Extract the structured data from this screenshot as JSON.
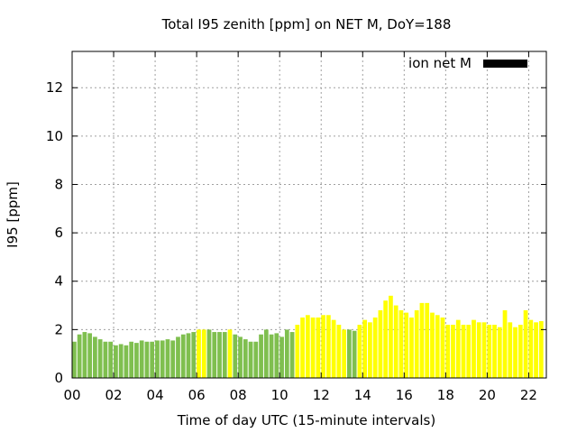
{
  "chart_data": {
    "type": "bar",
    "title": "Total I95 zenith [ppm] on NET M, DoY=188",
    "xlabel": "Time of day UTC (15-minute intervals)",
    "ylabel": "I95 [ppm]",
    "ylim": [
      0,
      13.5
    ],
    "xlim": [
      0,
      22.85
    ],
    "yticks": [
      0,
      2,
      4,
      6,
      8,
      10,
      12
    ],
    "xticks": [
      0,
      2,
      4,
      6,
      8,
      10,
      12,
      14,
      16,
      18,
      20,
      22
    ],
    "xtick_labels": [
      "00",
      "02",
      "04",
      "06",
      "08",
      "10",
      "12",
      "14",
      "16",
      "18",
      "20",
      "22"
    ],
    "grid": true,
    "legend_position": "top-right",
    "legend_entry": "ion net M",
    "legend_color": "#000000",
    "bar_colors": {
      "green": "#7fbf4f",
      "yellow": "#ffff00"
    },
    "bin_hours": 0.25,
    "values": [
      1.5,
      1.8,
      1.9,
      1.85,
      1.7,
      1.6,
      1.5,
      1.5,
      1.35,
      1.4,
      1.35,
      1.5,
      1.45,
      1.55,
      1.5,
      1.5,
      1.55,
      1.55,
      1.6,
      1.55,
      1.7,
      1.8,
      1.85,
      1.9,
      2.0,
      2.0,
      2.0,
      1.9,
      1.9,
      1.9,
      2.0,
      1.8,
      1.7,
      1.6,
      1.5,
      1.5,
      1.8,
      2.0,
      1.8,
      1.85,
      1.7,
      2.0,
      1.9,
      2.2,
      2.5,
      2.6,
      2.5,
      2.5,
      2.6,
      2.6,
      2.4,
      2.2,
      2.0,
      2.0,
      1.95,
      2.2,
      2.4,
      2.3,
      2.5,
      2.8,
      3.2,
      3.4,
      3.0,
      2.8,
      2.7,
      2.5,
      2.8,
      3.1,
      3.1,
      2.7,
      2.6,
      2.5,
      2.2,
      2.2,
      2.4,
      2.2,
      2.2,
      2.4,
      2.3,
      2.3,
      2.2,
      2.2,
      2.1,
      2.8,
      2.3,
      2.1,
      2.2,
      2.8,
      2.4,
      2.3,
      2.35
    ],
    "colors": [
      "green",
      "green",
      "green",
      "green",
      "green",
      "green",
      "green",
      "green",
      "green",
      "green",
      "green",
      "green",
      "green",
      "green",
      "green",
      "green",
      "green",
      "green",
      "green",
      "green",
      "green",
      "green",
      "green",
      "green",
      "yellow",
      "yellow",
      "green",
      "green",
      "green",
      "green",
      "yellow",
      "green",
      "green",
      "green",
      "green",
      "green",
      "green",
      "green",
      "green",
      "green",
      "green",
      "green",
      "green",
      "yellow",
      "yellow",
      "yellow",
      "yellow",
      "yellow",
      "yellow",
      "yellow",
      "yellow",
      "yellow",
      "yellow",
      "green",
      "green",
      "yellow",
      "yellow",
      "yellow",
      "yellow",
      "yellow",
      "yellow",
      "yellow",
      "yellow",
      "yellow",
      "yellow",
      "yellow",
      "yellow",
      "yellow",
      "yellow",
      "yellow",
      "yellow",
      "yellow",
      "yellow",
      "yellow",
      "yellow",
      "yellow",
      "yellow",
      "yellow",
      "yellow",
      "yellow",
      "yellow",
      "yellow",
      "yellow",
      "yellow",
      "yellow",
      "yellow",
      "yellow",
      "yellow",
      "yellow",
      "yellow",
      "yellow"
    ]
  }
}
